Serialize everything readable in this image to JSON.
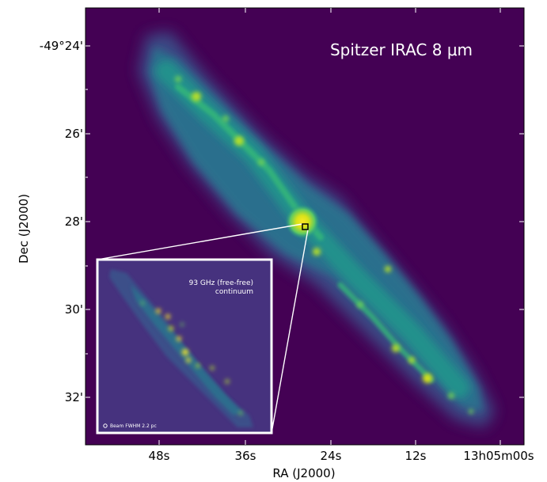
{
  "figure": {
    "main_label": "Spitzer IRAC 8 μm",
    "inset_label_line1": "93 GHz (free-free)",
    "inset_label_line2": "continuum",
    "beam_label": "Beam FWHM 2.2 pc",
    "colormap": "viridis",
    "background_color": "#440154"
  },
  "axes": {
    "xlabel": "RA (J2000)",
    "ylabel": "Dec (J2000)",
    "xticks": [
      "48s",
      "36s",
      "24s",
      "12s",
      "13h05m00s"
    ],
    "yticks": [
      "-49°24'",
      "26'",
      "28'",
      "30'",
      "32'"
    ]
  }
}
